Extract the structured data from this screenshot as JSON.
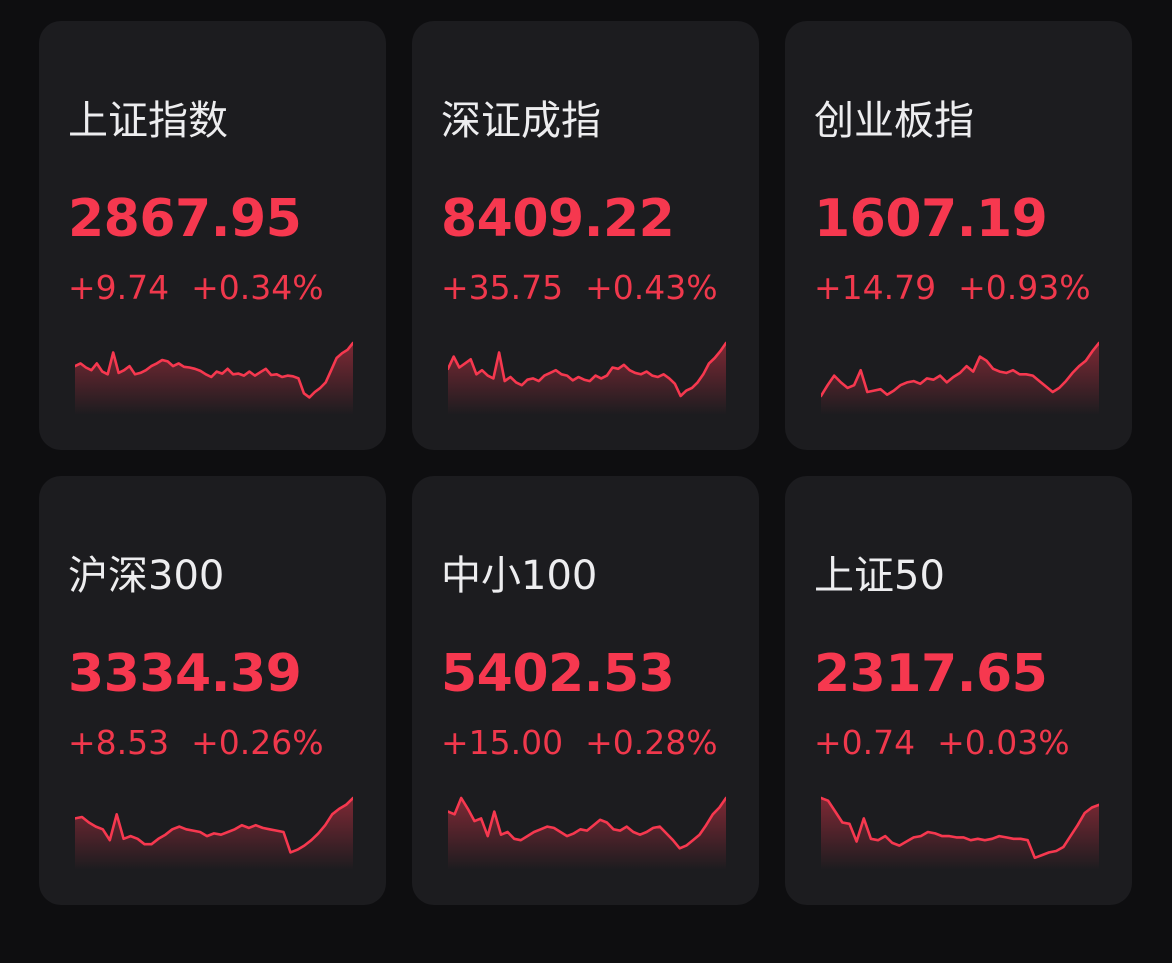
{
  "colors": {
    "background": "#0e0e10",
    "card": "#1c1c1f",
    "up": "#f6384f",
    "text": "#ededef"
  },
  "indices": [
    {
      "name": "上证指数",
      "price": "2867.95",
      "change": "+9.74",
      "percent": "+0.34%",
      "trend": [
        0.34,
        0.3,
        0.36,
        0.4,
        0.3,
        0.42,
        0.46,
        0.14,
        0.44,
        0.4,
        0.34,
        0.46,
        0.44,
        0.4,
        0.34,
        0.3,
        0.25,
        0.27,
        0.34,
        0.3,
        0.35,
        0.36,
        0.38,
        0.41,
        0.46,
        0.5,
        0.42,
        0.45,
        0.38,
        0.46,
        0.45,
        0.48,
        0.42,
        0.48,
        0.43,
        0.38,
        0.47,
        0.46,
        0.5,
        0.48,
        0.49,
        0.52,
        0.74,
        0.8,
        0.72,
        0.66,
        0.58,
        0.4,
        0.22,
        0.15,
        0.1,
        0.0
      ]
    },
    {
      "name": "深证成指",
      "price": "8409.22",
      "change": "+35.75",
      "percent": "+0.43%",
      "trend": [
        0.38,
        0.2,
        0.36,
        0.3,
        0.24,
        0.46,
        0.4,
        0.48,
        0.52,
        0.14,
        0.56,
        0.5,
        0.58,
        0.62,
        0.54,
        0.52,
        0.56,
        0.48,
        0.44,
        0.4,
        0.46,
        0.48,
        0.55,
        0.5,
        0.54,
        0.56,
        0.48,
        0.52,
        0.48,
        0.36,
        0.38,
        0.32,
        0.4,
        0.44,
        0.46,
        0.42,
        0.48,
        0.5,
        0.46,
        0.52,
        0.6,
        0.78,
        0.7,
        0.66,
        0.58,
        0.46,
        0.3,
        0.22,
        0.12,
        0.0
      ]
    },
    {
      "name": "创业板指",
      "price": "1607.19",
      "change": "+14.79",
      "percent": "+0.93%",
      "trend": [
        0.78,
        0.62,
        0.48,
        0.58,
        0.66,
        0.62,
        0.4,
        0.72,
        0.7,
        0.68,
        0.76,
        0.7,
        0.62,
        0.58,
        0.56,
        0.6,
        0.52,
        0.54,
        0.48,
        0.58,
        0.5,
        0.44,
        0.34,
        0.42,
        0.2,
        0.26,
        0.38,
        0.42,
        0.44,
        0.4,
        0.46,
        0.46,
        0.48,
        0.56,
        0.64,
        0.72,
        0.66,
        0.56,
        0.44,
        0.34,
        0.26,
        0.12,
        0.0
      ]
    },
    {
      "name": "沪深300",
      "price": "3334.39",
      "change": "+8.53",
      "percent": "+0.26%",
      "trend": [
        0.3,
        0.28,
        0.36,
        0.42,
        0.46,
        0.62,
        0.24,
        0.6,
        0.56,
        0.6,
        0.68,
        0.68,
        0.6,
        0.54,
        0.46,
        0.42,
        0.46,
        0.48,
        0.5,
        0.56,
        0.52,
        0.54,
        0.5,
        0.46,
        0.4,
        0.44,
        0.4,
        0.44,
        0.46,
        0.48,
        0.5,
        0.8,
        0.76,
        0.7,
        0.62,
        0.52,
        0.4,
        0.24,
        0.16,
        0.1,
        0.0
      ]
    },
    {
      "name": "中小100",
      "price": "5402.53",
      "change": "+15.00",
      "percent": "+0.28%",
      "trend": [
        0.2,
        0.24,
        0.0,
        0.16,
        0.34,
        0.3,
        0.56,
        0.2,
        0.54,
        0.5,
        0.6,
        0.62,
        0.56,
        0.5,
        0.46,
        0.42,
        0.44,
        0.5,
        0.56,
        0.52,
        0.46,
        0.48,
        0.4,
        0.32,
        0.36,
        0.46,
        0.48,
        0.42,
        0.5,
        0.54,
        0.5,
        0.44,
        0.42,
        0.52,
        0.62,
        0.74,
        0.7,
        0.62,
        0.54,
        0.4,
        0.24,
        0.14,
        0.0
      ]
    },
    {
      "name": "上证50",
      "price": "2317.65",
      "change": "+0.74",
      "percent": "+0.03%",
      "trend": [
        0.0,
        0.04,
        0.2,
        0.36,
        0.38,
        0.64,
        0.3,
        0.6,
        0.62,
        0.56,
        0.66,
        0.7,
        0.64,
        0.58,
        0.56,
        0.5,
        0.52,
        0.56,
        0.56,
        0.58,
        0.58,
        0.62,
        0.6,
        0.62,
        0.6,
        0.56,
        0.58,
        0.6,
        0.6,
        0.62,
        0.88,
        0.84,
        0.8,
        0.78,
        0.72,
        0.56,
        0.4,
        0.22,
        0.14,
        0.1
      ]
    }
  ]
}
